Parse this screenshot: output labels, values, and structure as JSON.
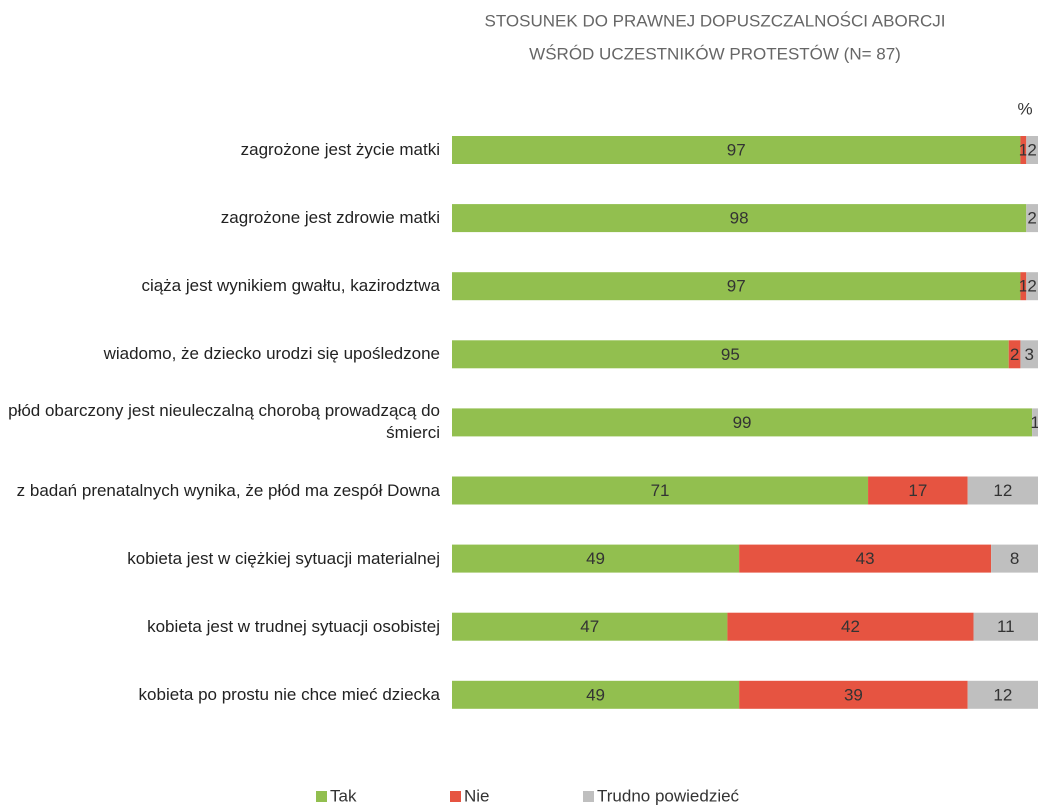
{
  "chart_data": {
    "type": "stacked_bar_horizontal",
    "title_lines": [
      "STOSUNEK DO PRAWNEJ DOPUSZCZALNOŚCI ABORCJI",
      "WŚRÓD UCZESTNIKÓW PROTESTÓW (N= 87)"
    ],
    "unit_label": "%",
    "categories": [
      "zagrożone jest życie matki",
      "zagrożone jest zdrowie matki",
      "ciąża jest wynikiem gwałtu, kazirodztwa",
      "wiadomo, że dziecko urodzi się upośledzone",
      "płód obarczony jest nieuleczalną chorobą prowadzącą do śmierci",
      "z badań prenatalnych wynika, że płód ma zespół Downa",
      "kobieta jest w ciężkiej sytuacji materialnej",
      "kobieta jest w trudnej sytuacji osobistej",
      "kobieta po prostu nie chce mieć dziecka"
    ],
    "series": [
      {
        "name": "Tak",
        "color": "#92bf4f",
        "values": [
          97,
          98,
          97,
          95,
          99,
          71,
          49,
          47,
          49
        ]
      },
      {
        "name": "Nie",
        "color": "#e65441",
        "values": [
          1,
          0,
          1,
          2,
          0,
          17,
          43,
          42,
          39
        ]
      },
      {
        "name": "Trudno powiedzieć",
        "color": "#bfbfbf",
        "values": [
          2,
          2,
          2,
          3,
          1,
          12,
          8,
          11,
          12
        ]
      }
    ],
    "xlim": [
      0,
      100
    ],
    "legend": "bottom"
  }
}
